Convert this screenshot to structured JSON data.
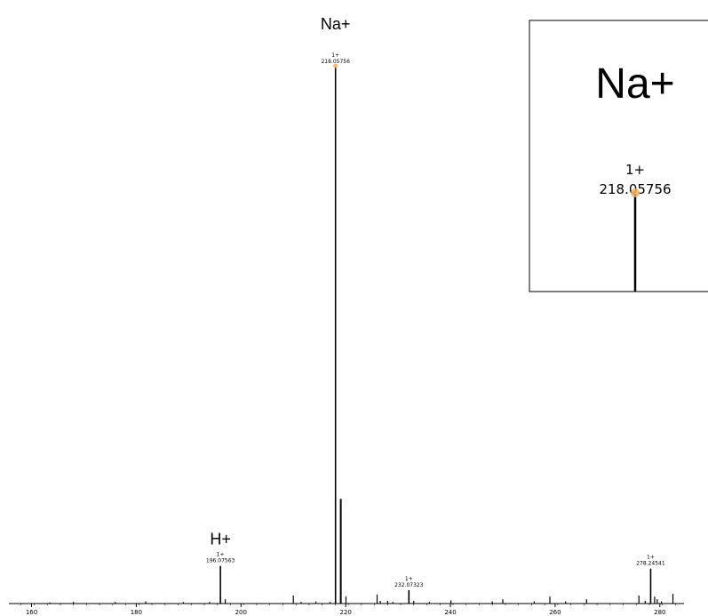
{
  "chart_data": {
    "type": "bar",
    "xlim": [
      158,
      284
    ],
    "ylim": [
      0,
      100
    ],
    "x_ticks": [
      160,
      180,
      200,
      220,
      240,
      260,
      280
    ],
    "grid": false,
    "marker_color": "#f0b060",
    "labeled_peaks": [
      {
        "x": 196.07563,
        "y": 7,
        "charge": "1+",
        "mz": "196.07563",
        "ion": "H+"
      },
      {
        "x": 218.05756,
        "y": 100,
        "charge": "1+",
        "mz": "218.05756",
        "ion": "Na+",
        "marker": true
      },
      {
        "x": 232.07323,
        "y": 2.5,
        "charge": "1+",
        "mz": "232.07323"
      },
      {
        "x": 278.24541,
        "y": 6.5,
        "charge": "1+",
        "mz": "278.24541"
      }
    ],
    "minor_peaks": [
      {
        "x": 163.5,
        "y": 0.2
      },
      {
        "x": 168.0,
        "y": 0.3
      },
      {
        "x": 176.0,
        "y": 0.3
      },
      {
        "x": 181.8,
        "y": 0.4
      },
      {
        "x": 189.0,
        "y": 0.3
      },
      {
        "x": 194.0,
        "y": 0.3
      },
      {
        "x": 197.0,
        "y": 0.8
      },
      {
        "x": 210.0,
        "y": 1.5
      },
      {
        "x": 211.5,
        "y": 0.3
      },
      {
        "x": 214.3,
        "y": 0.4
      },
      {
        "x": 217.0,
        "y": 0.3
      },
      {
        "x": 219.06,
        "y": 19.5
      },
      {
        "x": 220.05,
        "y": 1.3
      },
      {
        "x": 226.0,
        "y": 1.7
      },
      {
        "x": 226.6,
        "y": 0.5
      },
      {
        "x": 228.0,
        "y": 0.5
      },
      {
        "x": 229.0,
        "y": 0.3
      },
      {
        "x": 233.0,
        "y": 0.5
      },
      {
        "x": 236.0,
        "y": 0.3
      },
      {
        "x": 240.1,
        "y": 0.6
      },
      {
        "x": 248.0,
        "y": 0.4
      },
      {
        "x": 250.0,
        "y": 0.8
      },
      {
        "x": 256.0,
        "y": 0.4
      },
      {
        "x": 259.0,
        "y": 1.3
      },
      {
        "x": 262.0,
        "y": 0.4
      },
      {
        "x": 266.0,
        "y": 0.8
      },
      {
        "x": 276.0,
        "y": 1.5
      },
      {
        "x": 277.2,
        "y": 0.5
      },
      {
        "x": 279.0,
        "y": 1.3
      },
      {
        "x": 279.5,
        "y": 0.8
      },
      {
        "x": 280.3,
        "y": 0.4
      },
      {
        "x": 282.5,
        "y": 1.8
      }
    ]
  },
  "inset": {
    "ion": "Na+",
    "charge": "1+",
    "mz": "218.05756"
  }
}
